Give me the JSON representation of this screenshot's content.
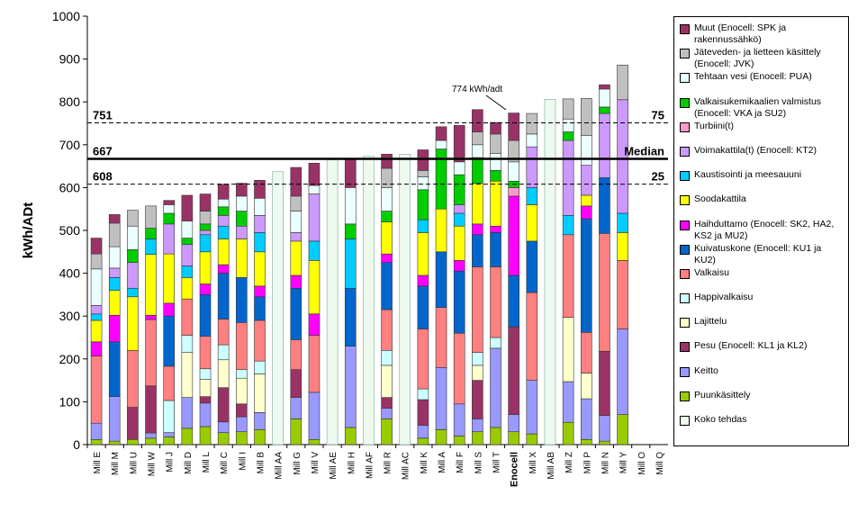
{
  "chart_data": {
    "type": "stacked_bar",
    "y_label": "kWh/ADt",
    "categories": [
      "Mill E",
      "Mill M",
      "Mill U",
      "Mill W",
      "Mill J",
      "Mill D",
      "Mill L",
      "Mill C",
      "Mill I",
      "Mill B",
      "Mill AA",
      "Mill G",
      "Mill V",
      "Mill AE",
      "Mill H",
      "Mill AF",
      "Mill R",
      "Mill AC",
      "Mill K",
      "Mill A",
      "Mill F",
      "Mill S",
      "Mill T",
      "Enocell",
      "Mill X",
      "Mill AB",
      "Mill Z",
      "Mill P",
      "Mill N",
      "Mill Y",
      "Mill O",
      "Mill Q"
    ],
    "ylim": [
      0,
      1000
    ],
    "yticks": [
      0,
      100,
      200,
      300,
      400,
      500,
      600,
      700,
      800,
      900,
      1000
    ],
    "series": [
      {
        "name": "Puunkäsittely",
        "color": "#99cc00",
        "values": [
          12,
          8,
          12,
          15,
          18,
          38,
          42,
          28,
          30,
          35,
          null,
          60,
          12,
          null,
          40,
          null,
          60,
          null,
          15,
          35,
          20,
          30,
          40,
          30,
          25,
          null,
          52,
          12,
          8,
          70,
          null,
          null
        ]
      },
      {
        "name": "Keitto",
        "color": "#9999ff",
        "values": [
          38,
          104,
          null,
          12,
          10,
          72,
          55,
          25,
          35,
          40,
          null,
          50,
          110,
          null,
          190,
          null,
          25,
          null,
          30,
          145,
          75,
          30,
          185,
          40,
          125,
          null,
          95,
          95,
          60,
          200,
          null,
          null
        ]
      },
      {
        "name": "Pesu (Enocell: KL1 ja KL2)",
        "color": "#993366",
        "values": [
          null,
          null,
          75,
          110,
          null,
          null,
          15,
          80,
          30,
          null,
          null,
          65,
          null,
          null,
          null,
          null,
          25,
          null,
          60,
          null,
          null,
          90,
          null,
          205,
          null,
          null,
          null,
          null,
          150,
          null,
          null,
          null
        ]
      },
      {
        "name": "Lajittelu",
        "color": "#ffffcc",
        "values": [
          null,
          null,
          null,
          null,
          null,
          105,
          40,
          65,
          60,
          90,
          null,
          null,
          null,
          null,
          null,
          null,
          75,
          null,
          null,
          null,
          null,
          35,
          null,
          null,
          null,
          null,
          150,
          60,
          null,
          null,
          null,
          null
        ]
      },
      {
        "name": "Happivalkaisu",
        "color": "#ccffff",
        "values": [
          null,
          null,
          null,
          null,
          75,
          40,
          25,
          35,
          20,
          30,
          null,
          null,
          null,
          null,
          null,
          null,
          35,
          null,
          25,
          null,
          null,
          30,
          25,
          null,
          null,
          null,
          null,
          null,
          null,
          null,
          null,
          null
        ]
      },
      {
        "name": "Valkaisu",
        "color": "#ff8080",
        "values": [
          157,
          null,
          133,
          155,
          80,
          85,
          76,
          60,
          110,
          95,
          null,
          70,
          133,
          null,
          null,
          null,
          95,
          null,
          140,
          140,
          165,
          200,
          165,
          null,
          205,
          null,
          193,
          95,
          275,
          160,
          null,
          null
        ]
      },
      {
        "name": "Kuivatuskone (Enocell: KU1 ja KU2)",
        "color": "#0066cc",
        "values": [
          null,
          128,
          null,
          null,
          117,
          null,
          97,
          107,
          105,
          55,
          null,
          120,
          null,
          null,
          135,
          null,
          110,
          null,
          100,
          130,
          145,
          75,
          80,
          120,
          120,
          null,
          null,
          265,
          130,
          null,
          null,
          null
        ]
      },
      {
        "name": "Haihduttamo (Enocell: SK2, HA2, KS2 ja MU2)",
        "color": "#ff00ff",
        "values": [
          33,
          62,
          null,
          10,
          30,
          null,
          25,
          20,
          null,
          25,
          null,
          30,
          50,
          null,
          null,
          null,
          20,
          null,
          25,
          null,
          25,
          25,
          15,
          185,
          null,
          null,
          null,
          30,
          null,
          null,
          null,
          null
        ]
      },
      {
        "name": "Soodakattila",
        "color": "#ffff00",
        "values": [
          50,
          58,
          125,
          142,
          115,
          50,
          75,
          60,
          90,
          80,
          null,
          80,
          125,
          null,
          null,
          null,
          75,
          null,
          100,
          100,
          80,
          95,
          105,
          null,
          85,
          null,
          null,
          25,
          null,
          65,
          null,
          null
        ]
      },
      {
        "name": "Kaustisointi ja meesauuni",
        "color": "#00ccff",
        "values": [
          15,
          30,
          20,
          36,
          null,
          27,
          40,
          30,
          null,
          45,
          null,
          null,
          45,
          null,
          115,
          null,
          null,
          null,
          30,
          null,
          30,
          null,
          null,
          null,
          40,
          null,
          45,
          null,
          null,
          45,
          null,
          null
        ]
      },
      {
        "name": "Voimakattila(t) (Enocell: KT2)",
        "color": "#cc99ff",
        "values": [
          20,
          22,
          60,
          null,
          70,
          50,
          10,
          25,
          30,
          40,
          null,
          20,
          110,
          null,
          null,
          null,
          null,
          null,
          null,
          null,
          20,
          null,
          null,
          null,
          95,
          null,
          175,
          70,
          150,
          265,
          null,
          null
        ]
      },
      {
        "name": "Turbiini(t)",
        "color": "#ff99cc",
        "values": [
          null,
          null,
          null,
          null,
          null,
          null,
          null,
          null,
          null,
          null,
          null,
          null,
          null,
          null,
          null,
          null,
          null,
          null,
          null,
          null,
          null,
          null,
          null,
          20,
          null,
          null,
          null,
          null,
          null,
          null,
          null,
          null
        ]
      },
      {
        "name": "Valkaisukemikaalien valmistus (Enocell: VKA ja SU2)",
        "color": "#00cc00",
        "values": [
          null,
          null,
          30,
          25,
          25,
          15,
          15,
          20,
          35,
          null,
          null,
          null,
          null,
          null,
          35,
          null,
          25,
          null,
          70,
          140,
          70,
          60,
          25,
          15,
          null,
          null,
          20,
          null,
          15,
          null,
          null,
          null
        ]
      },
      {
        "name": "Tehtaan vesi (Enocell: PUA)",
        "color": "#eaffff",
        "values": [
          85,
          50,
          55,
          null,
          20,
          40,
          null,
          18,
          35,
          40,
          null,
          50,
          20,
          null,
          85,
          null,
          55,
          null,
          30,
          20,
          30,
          30,
          40,
          45,
          30,
          null,
          30,
          70,
          42,
          null,
          null,
          null
        ]
      },
      {
        "name": "Jäteveden- ja lietteen käsittely (Enocell: JVK)",
        "color": "#c0c0c0",
        "values": [
          35,
          55,
          37,
          52,
          null,
          null,
          30,
          null,
          null,
          null,
          null,
          35,
          null,
          null,
          null,
          null,
          45,
          null,
          15,
          null,
          null,
          30,
          45,
          50,
          48,
          null,
          47,
          86,
          null,
          81,
          null,
          null
        ]
      },
      {
        "name": "Muut (Enocell: SPK ja rakennussähkö)",
        "color": "#993366",
        "values": [
          37,
          20,
          null,
          null,
          10,
          60,
          40,
          35,
          30,
          42,
          null,
          67,
          52,
          null,
          68,
          null,
          33,
          null,
          48,
          32,
          85,
          52,
          27,
          64,
          null,
          null,
          null,
          null,
          10,
          null,
          null,
          null
        ]
      },
      {
        "name": "Koko tehdas",
        "color": "#eefaee",
        "values": [
          null,
          null,
          null,
          null,
          null,
          null,
          null,
          null,
          null,
          null,
          637,
          null,
          null,
          665,
          null,
          673,
          null,
          678,
          null,
          null,
          null,
          null,
          null,
          null,
          null,
          806,
          null,
          null,
          null,
          null,
          null,
          null
        ]
      }
    ],
    "reference_lines": [
      {
        "value": 751,
        "label": "751",
        "right_label": "75",
        "style": "dashed"
      },
      {
        "value": 667,
        "label": "667",
        "right_label": "Median",
        "style": "solid"
      },
      {
        "value": 608,
        "label": "608",
        "right_label": "25",
        "style": "dashed"
      }
    ],
    "annotation": "774 kWh/adt"
  }
}
